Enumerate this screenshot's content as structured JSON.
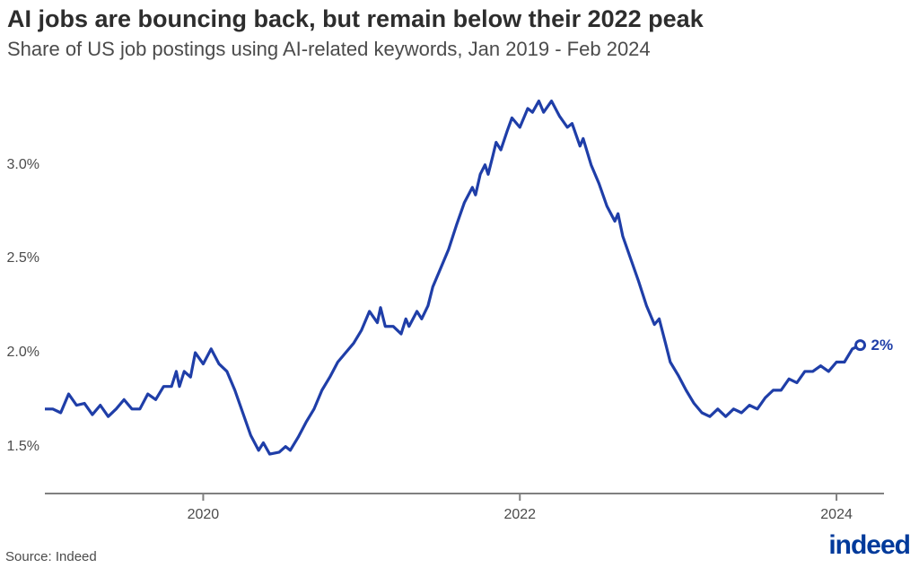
{
  "title": "AI jobs are bouncing back, but remain below their 2022 peak",
  "subtitle": "Share of US job postings using AI-related keywords, Jan 2019 - Feb 2024",
  "source": "Source: Indeed",
  "logo_text": "indeed",
  "chart": {
    "type": "line",
    "background_color": "#ffffff",
    "line_color": "#1f3ea8",
    "line_width": 3.2,
    "axis_color": "#808080",
    "tick_font_color": "#4b4b4b",
    "tick_fontsize": 16,
    "title_fontsize": 27,
    "subtitle_fontsize": 22,
    "title_color": "#2d2d2d",
    "subtitle_color": "#4b4b4b",
    "end_marker": {
      "fill": "#ffffff",
      "stroke": "#1f3ea8",
      "stroke_width": 3,
      "radius": 5
    },
    "end_label": {
      "text": "2%",
      "color": "#1f3ea8",
      "fontsize": 17,
      "fontweight": 700
    },
    "x_domain_years": [
      2019.0,
      2024.3
    ],
    "xticks": [
      {
        "value": 2020,
        "label": "2020"
      },
      {
        "value": 2022,
        "label": "2022"
      },
      {
        "value": 2024,
        "label": "2024"
      }
    ],
    "y_domain": [
      1.25,
      3.4
    ],
    "yticks": [
      {
        "value": 1.5,
        "label": "1.5%"
      },
      {
        "value": 2.0,
        "label": "2.0%"
      },
      {
        "value": 2.5,
        "label": "2.5%"
      },
      {
        "value": 3.0,
        "label": "3.0%"
      }
    ],
    "series": [
      {
        "x": 2019.0,
        "y": 1.7
      },
      {
        "x": 2019.05,
        "y": 1.7
      },
      {
        "x": 2019.1,
        "y": 1.68
      },
      {
        "x": 2019.15,
        "y": 1.78
      },
      {
        "x": 2019.2,
        "y": 1.72
      },
      {
        "x": 2019.25,
        "y": 1.73
      },
      {
        "x": 2019.3,
        "y": 1.67
      },
      {
        "x": 2019.35,
        "y": 1.72
      },
      {
        "x": 2019.4,
        "y": 1.66
      },
      {
        "x": 2019.45,
        "y": 1.7
      },
      {
        "x": 2019.5,
        "y": 1.75
      },
      {
        "x": 2019.55,
        "y": 1.7
      },
      {
        "x": 2019.6,
        "y": 1.7
      },
      {
        "x": 2019.65,
        "y": 1.78
      },
      {
        "x": 2019.7,
        "y": 1.75
      },
      {
        "x": 2019.75,
        "y": 1.82
      },
      {
        "x": 2019.8,
        "y": 1.82
      },
      {
        "x": 2019.83,
        "y": 1.9
      },
      {
        "x": 2019.85,
        "y": 1.82
      },
      {
        "x": 2019.88,
        "y": 1.9
      },
      {
        "x": 2019.92,
        "y": 1.87
      },
      {
        "x": 2019.95,
        "y": 2.0
      },
      {
        "x": 2020.0,
        "y": 1.94
      },
      {
        "x": 2020.05,
        "y": 2.02
      },
      {
        "x": 2020.1,
        "y": 1.94
      },
      {
        "x": 2020.15,
        "y": 1.9
      },
      {
        "x": 2020.2,
        "y": 1.8
      },
      {
        "x": 2020.25,
        "y": 1.68
      },
      {
        "x": 2020.3,
        "y": 1.56
      },
      {
        "x": 2020.35,
        "y": 1.48
      },
      {
        "x": 2020.38,
        "y": 1.52
      },
      {
        "x": 2020.42,
        "y": 1.46
      },
      {
        "x": 2020.48,
        "y": 1.47
      },
      {
        "x": 2020.52,
        "y": 1.5
      },
      {
        "x": 2020.55,
        "y": 1.48
      },
      {
        "x": 2020.6,
        "y": 1.55
      },
      {
        "x": 2020.65,
        "y": 1.63
      },
      {
        "x": 2020.7,
        "y": 1.7
      },
      {
        "x": 2020.75,
        "y": 1.8
      },
      {
        "x": 2020.8,
        "y": 1.87
      },
      {
        "x": 2020.85,
        "y": 1.95
      },
      {
        "x": 2020.9,
        "y": 2.0
      },
      {
        "x": 2020.95,
        "y": 2.05
      },
      {
        "x": 2021.0,
        "y": 2.12
      },
      {
        "x": 2021.05,
        "y": 2.22
      },
      {
        "x": 2021.1,
        "y": 2.16
      },
      {
        "x": 2021.12,
        "y": 2.24
      },
      {
        "x": 2021.15,
        "y": 2.14
      },
      {
        "x": 2021.2,
        "y": 2.14
      },
      {
        "x": 2021.25,
        "y": 2.1
      },
      {
        "x": 2021.28,
        "y": 2.18
      },
      {
        "x": 2021.3,
        "y": 2.14
      },
      {
        "x": 2021.35,
        "y": 2.22
      },
      {
        "x": 2021.38,
        "y": 2.18
      },
      {
        "x": 2021.42,
        "y": 2.25
      },
      {
        "x": 2021.45,
        "y": 2.35
      },
      {
        "x": 2021.5,
        "y": 2.45
      },
      {
        "x": 2021.55,
        "y": 2.55
      },
      {
        "x": 2021.6,
        "y": 2.68
      },
      {
        "x": 2021.65,
        "y": 2.8
      },
      {
        "x": 2021.7,
        "y": 2.88
      },
      {
        "x": 2021.72,
        "y": 2.84
      },
      {
        "x": 2021.75,
        "y": 2.95
      },
      {
        "x": 2021.78,
        "y": 3.0
      },
      {
        "x": 2021.8,
        "y": 2.95
      },
      {
        "x": 2021.83,
        "y": 3.05
      },
      {
        "x": 2021.85,
        "y": 3.12
      },
      {
        "x": 2021.88,
        "y": 3.08
      },
      {
        "x": 2021.92,
        "y": 3.18
      },
      {
        "x": 2021.95,
        "y": 3.25
      },
      {
        "x": 2022.0,
        "y": 3.2
      },
      {
        "x": 2022.05,
        "y": 3.3
      },
      {
        "x": 2022.08,
        "y": 3.28
      },
      {
        "x": 2022.12,
        "y": 3.34
      },
      {
        "x": 2022.15,
        "y": 3.28
      },
      {
        "x": 2022.2,
        "y": 3.34
      },
      {
        "x": 2022.25,
        "y": 3.26
      },
      {
        "x": 2022.3,
        "y": 3.2
      },
      {
        "x": 2022.33,
        "y": 3.22
      },
      {
        "x": 2022.38,
        "y": 3.1
      },
      {
        "x": 2022.4,
        "y": 3.14
      },
      {
        "x": 2022.45,
        "y": 3.0
      },
      {
        "x": 2022.5,
        "y": 2.9
      },
      {
        "x": 2022.55,
        "y": 2.78
      },
      {
        "x": 2022.6,
        "y": 2.7
      },
      {
        "x": 2022.62,
        "y": 2.74
      },
      {
        "x": 2022.65,
        "y": 2.62
      },
      {
        "x": 2022.7,
        "y": 2.5
      },
      {
        "x": 2022.75,
        "y": 2.38
      },
      {
        "x": 2022.8,
        "y": 2.25
      },
      {
        "x": 2022.85,
        "y": 2.15
      },
      {
        "x": 2022.88,
        "y": 2.18
      },
      {
        "x": 2022.92,
        "y": 2.05
      },
      {
        "x": 2022.95,
        "y": 1.95
      },
      {
        "x": 2023.0,
        "y": 1.88
      },
      {
        "x": 2023.05,
        "y": 1.8
      },
      {
        "x": 2023.1,
        "y": 1.73
      },
      {
        "x": 2023.15,
        "y": 1.68
      },
      {
        "x": 2023.2,
        "y": 1.66
      },
      {
        "x": 2023.25,
        "y": 1.7
      },
      {
        "x": 2023.3,
        "y": 1.66
      },
      {
        "x": 2023.35,
        "y": 1.7
      },
      {
        "x": 2023.4,
        "y": 1.68
      },
      {
        "x": 2023.45,
        "y": 1.72
      },
      {
        "x": 2023.5,
        "y": 1.7
      },
      {
        "x": 2023.55,
        "y": 1.76
      },
      {
        "x": 2023.6,
        "y": 1.8
      },
      {
        "x": 2023.65,
        "y": 1.8
      },
      {
        "x": 2023.7,
        "y": 1.86
      },
      {
        "x": 2023.75,
        "y": 1.84
      },
      {
        "x": 2023.8,
        "y": 1.9
      },
      {
        "x": 2023.85,
        "y": 1.9
      },
      {
        "x": 2023.9,
        "y": 1.93
      },
      {
        "x": 2023.95,
        "y": 1.9
      },
      {
        "x": 2024.0,
        "y": 1.95
      },
      {
        "x": 2024.05,
        "y": 1.95
      },
      {
        "x": 2024.1,
        "y": 2.02
      },
      {
        "x": 2024.15,
        "y": 2.04
      }
    ]
  },
  "logo_color": "#003a9b"
}
